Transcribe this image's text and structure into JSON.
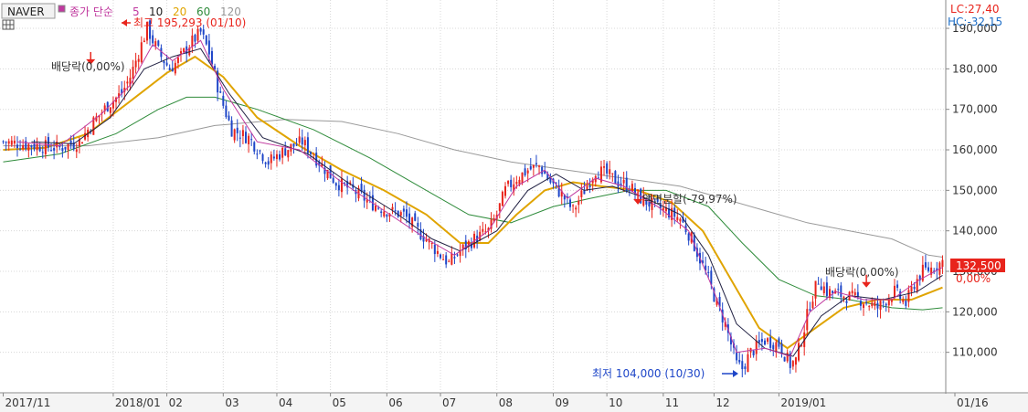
{
  "header": {
    "symbol": "NAVER",
    "ma_prefix": "종가 단순",
    "ma_items": [
      {
        "label": "5",
        "color": "#c0399f"
      },
      {
        "label": "10",
        "color": "#222222"
      },
      {
        "label": "20",
        "color": "#e0a400"
      },
      {
        "label": "60",
        "color": "#2e8b3a"
      },
      {
        "label": "120",
        "color": "#999999"
      }
    ]
  },
  "indicators": {
    "lc": "LC:27,40",
    "hc": "HC:-32,15",
    "price_badge": "132,500",
    "pct": "0,00%"
  },
  "annotations": {
    "high": "최고 195,293 (01/10)",
    "low": "최저 104,000 (10/30)",
    "div1": "배당락(0,00%)",
    "split": "액면분할(-79,97%)",
    "div2": "배당락(0,00%)"
  },
  "colors": {
    "up": "#e8241c",
    "down": "#1e46c8"
  },
  "chart_data": {
    "type": "candlestick",
    "ylim": [
      100000,
      197000
    ],
    "y_ticks": [
      "110,000",
      "120,000",
      "130,000",
      "140,000",
      "150,000",
      "160,000",
      "170,000",
      "180,000",
      "190,000"
    ],
    "y_tick_values": [
      110000,
      120000,
      130000,
      140000,
      150000,
      160000,
      170000,
      180000,
      190000
    ],
    "x_labels": [
      "2017/11",
      "2018/01",
      "02",
      "03",
      "04",
      "05",
      "06",
      "07",
      "08",
      "09",
      "10",
      "11",
      "12",
      "2019/01",
      "01/16"
    ],
    "price_path": [
      [
        0,
        162000
      ],
      [
        12,
        161000
      ],
      [
        20,
        160500
      ],
      [
        27,
        162000
      ],
      [
        32,
        167000
      ],
      [
        37,
        171000
      ],
      [
        42,
        174000
      ],
      [
        45,
        178000
      ],
      [
        48,
        184000
      ],
      [
        51,
        190000
      ],
      [
        53,
        187000
      ],
      [
        56,
        183000
      ],
      [
        59,
        180000
      ],
      [
        62,
        182000
      ],
      [
        66,
        186000
      ],
      [
        70,
        189000
      ],
      [
        73,
        184000
      ],
      [
        77,
        173000
      ],
      [
        81,
        165000
      ],
      [
        87,
        163000
      ],
      [
        94,
        157000
      ],
      [
        100,
        160000
      ],
      [
        106,
        162000
      ],
      [
        112,
        157000
      ],
      [
        118,
        152000
      ],
      [
        124,
        150000
      ],
      [
        130,
        147000
      ],
      [
        136,
        145000
      ],
      [
        142,
        144000
      ],
      [
        147,
        140000
      ],
      [
        150,
        138000
      ],
      [
        155,
        134000
      ],
      [
        158,
        132000
      ],
      [
        162,
        135000
      ],
      [
        167,
        138000
      ],
      [
        172,
        140000
      ],
      [
        175,
        144000
      ],
      [
        178,
        150000
      ],
      [
        182,
        153000
      ],
      [
        186,
        155000
      ],
      [
        190,
        156000
      ],
      [
        194,
        152000
      ],
      [
        198,
        149000
      ],
      [
        202,
        145000
      ],
      [
        206,
        150000
      ],
      [
        210,
        155000
      ],
      [
        214,
        154000
      ],
      [
        218,
        152000
      ],
      [
        222,
        151000
      ],
      [
        226,
        148000
      ],
      [
        231,
        146000
      ],
      [
        235,
        145000
      ],
      [
        240,
        143000
      ],
      [
        244,
        138000
      ],
      [
        247,
        133000
      ],
      [
        250,
        128000
      ],
      [
        253,
        122000
      ],
      [
        256,
        117000
      ],
      [
        258,
        112000
      ],
      [
        260,
        107000
      ],
      [
        262,
        106000
      ],
      [
        265,
        110000
      ],
      [
        270,
        113000
      ],
      [
        275,
        112000
      ],
      [
        279,
        107000
      ],
      [
        281,
        108000
      ],
      [
        284,
        116000
      ],
      [
        286,
        122000
      ],
      [
        289,
        128000
      ],
      [
        292,
        125000
      ],
      [
        298,
        124000
      ],
      [
        304,
        123000
      ],
      [
        310,
        121000
      ],
      [
        316,
        125000
      ],
      [
        320,
        122000
      ],
      [
        323,
        127000
      ],
      [
        326,
        130000
      ],
      [
        330,
        131000
      ],
      [
        333,
        132500
      ]
    ],
    "ma5": [
      [
        5,
        162000
      ],
      [
        20,
        161000
      ],
      [
        35,
        169000
      ],
      [
        45,
        176000
      ],
      [
        53,
        186000
      ],
      [
        60,
        182000
      ],
      [
        70,
        187000
      ],
      [
        78,
        175000
      ],
      [
        90,
        162000
      ],
      [
        105,
        160000
      ],
      [
        120,
        152000
      ],
      [
        135,
        145000
      ],
      [
        150,
        138000
      ],
      [
        160,
        134000
      ],
      [
        172,
        140000
      ],
      [
        182,
        151000
      ],
      [
        192,
        155000
      ],
      [
        200,
        148000
      ],
      [
        210,
        153000
      ],
      [
        220,
        151000
      ],
      [
        232,
        146000
      ],
      [
        243,
        140000
      ],
      [
        252,
        125000
      ],
      [
        260,
        110000
      ],
      [
        270,
        111000
      ],
      [
        279,
        109000
      ],
      [
        286,
        120000
      ],
      [
        295,
        125000
      ],
      [
        305,
        123000
      ],
      [
        315,
        123000
      ],
      [
        325,
        128000
      ],
      [
        333,
        131000
      ]
    ],
    "ma10": [
      [
        10,
        162000
      ],
      [
        25,
        161500
      ],
      [
        38,
        168000
      ],
      [
        50,
        180000
      ],
      [
        60,
        183000
      ],
      [
        70,
        185000
      ],
      [
        80,
        174000
      ],
      [
        92,
        163000
      ],
      [
        108,
        159000
      ],
      [
        122,
        152000
      ],
      [
        138,
        145000
      ],
      [
        152,
        138000
      ],
      [
        162,
        135000
      ],
      [
        175,
        140000
      ],
      [
        186,
        150000
      ],
      [
        196,
        154000
      ],
      [
        206,
        150000
      ],
      [
        216,
        151000
      ],
      [
        228,
        148000
      ],
      [
        240,
        144000
      ],
      [
        250,
        134000
      ],
      [
        260,
        117000
      ],
      [
        270,
        111000
      ],
      [
        280,
        109000
      ],
      [
        290,
        119000
      ],
      [
        300,
        124000
      ],
      [
        312,
        123000
      ],
      [
        324,
        125000
      ],
      [
        333,
        129000
      ]
    ],
    "ma20": [
      [
        0,
        160000
      ],
      [
        15,
        160500
      ],
      [
        30,
        164000
      ],
      [
        45,
        172000
      ],
      [
        58,
        179000
      ],
      [
        68,
        183000
      ],
      [
        78,
        178000
      ],
      [
        90,
        168000
      ],
      [
        105,
        161000
      ],
      [
        120,
        155000
      ],
      [
        135,
        150000
      ],
      [
        150,
        144000
      ],
      [
        162,
        137000
      ],
      [
        172,
        137000
      ],
      [
        182,
        144000
      ],
      [
        192,
        150000
      ],
      [
        202,
        152000
      ],
      [
        212,
        151000
      ],
      [
        225,
        150000
      ],
      [
        237,
        147000
      ],
      [
        248,
        140000
      ],
      [
        258,
        128000
      ],
      [
        268,
        116000
      ],
      [
        278,
        111000
      ],
      [
        288,
        116000
      ],
      [
        298,
        121000
      ],
      [
        310,
        123000
      ],
      [
        322,
        123000
      ],
      [
        333,
        126000
      ]
    ],
    "ma60": [
      [
        0,
        157000
      ],
      [
        20,
        159000
      ],
      [
        40,
        164000
      ],
      [
        55,
        170000
      ],
      [
        65,
        173000
      ],
      [
        75,
        173000
      ],
      [
        90,
        170000
      ],
      [
        110,
        165000
      ],
      [
        130,
        158000
      ],
      [
        150,
        150000
      ],
      [
        165,
        144000
      ],
      [
        180,
        142000
      ],
      [
        195,
        146000
      ],
      [
        208,
        148000
      ],
      [
        222,
        150000
      ],
      [
        235,
        150000
      ],
      [
        250,
        146000
      ],
      [
        262,
        137000
      ],
      [
        275,
        128000
      ],
      [
        288,
        124000
      ],
      [
        300,
        123000
      ],
      [
        315,
        121000
      ],
      [
        326,
        120500
      ],
      [
        333,
        121000
      ]
    ],
    "ma120": [
      [
        0,
        161000
      ],
      [
        30,
        161000
      ],
      [
        55,
        163000
      ],
      [
        75,
        166000
      ],
      [
        100,
        167500
      ],
      [
        120,
        167000
      ],
      [
        140,
        164000
      ],
      [
        160,
        160000
      ],
      [
        180,
        157000
      ],
      [
        200,
        155000
      ],
      [
        220,
        153000
      ],
      [
        240,
        151000
      ],
      [
        255,
        148000
      ],
      [
        270,
        145000
      ],
      [
        285,
        142000
      ],
      [
        300,
        140000
      ],
      [
        315,
        138000
      ],
      [
        328,
        134000
      ],
      [
        333,
        133500
      ]
    ],
    "markers": [
      {
        "label": "div1",
        "x": 31,
        "price": 181000
      },
      {
        "label": "split",
        "x": 225,
        "price": 146500
      },
      {
        "label": "div2",
        "x": 306,
        "price": 126000
      }
    ]
  }
}
